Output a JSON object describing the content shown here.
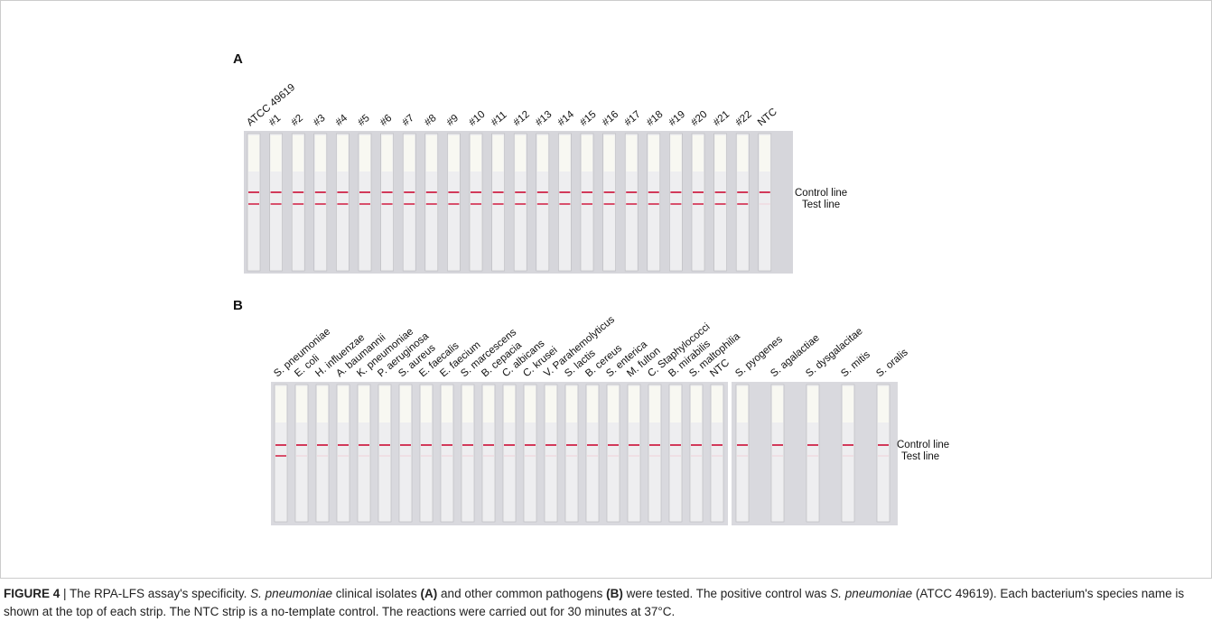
{
  "figure": {
    "panel_a": {
      "label": "A",
      "strips": [
        "ATCC 49619",
        "#1",
        "#2",
        "#3",
        "#4",
        "#5",
        "#6",
        "#7",
        "#8",
        "#9",
        "#10",
        "#11",
        "#12",
        "#13",
        "#14",
        "#15",
        "#16",
        "#17",
        "#18",
        "#19",
        "#20",
        "#21",
        "#22",
        "NTC"
      ],
      "control_line": "Control line",
      "test_line": "Test line"
    },
    "panel_b": {
      "label": "B",
      "strips": [
        "S. pneumoniae",
        "E. coli",
        "H. influenzae",
        "A. baumannii",
        "K. pneumoniae",
        "P. aeruginosa",
        "S. aureus",
        "E. faecalis",
        "E. faecium",
        "S. marcescens",
        "B. cepacia",
        "C. albicans",
        "C. krusei",
        "V. Parahemolyticus",
        "S. lactis",
        "B. cereus",
        "S. enterica",
        "M. fulton",
        "C. Staphylococci",
        "B. mirabilis",
        "S. maltophilia",
        "NTC"
      ],
      "extra_strips": [
        "S. pyogenes",
        "S. agalactiae",
        "S. dysgalacitae",
        "S. mitis",
        "S. oralis"
      ],
      "control_line": "Control line",
      "test_line": "Test line"
    },
    "caption": {
      "segments": [
        "FIGURE 4",
        " | The RPA-LFS assay's specificity. ",
        "S. pneumoniae",
        " clinical isolates ",
        "(A)",
        " and other common pathogens ",
        "(B)",
        " were tested. The positive control was ",
        "S. pneumoniae",
        " (ATCC 49619). Each bacterium's species name is shown at the top of each strip. The NTC strip is a no-template control. The reactions were carried out for 30 minutes at 37°C."
      ]
    }
  }
}
